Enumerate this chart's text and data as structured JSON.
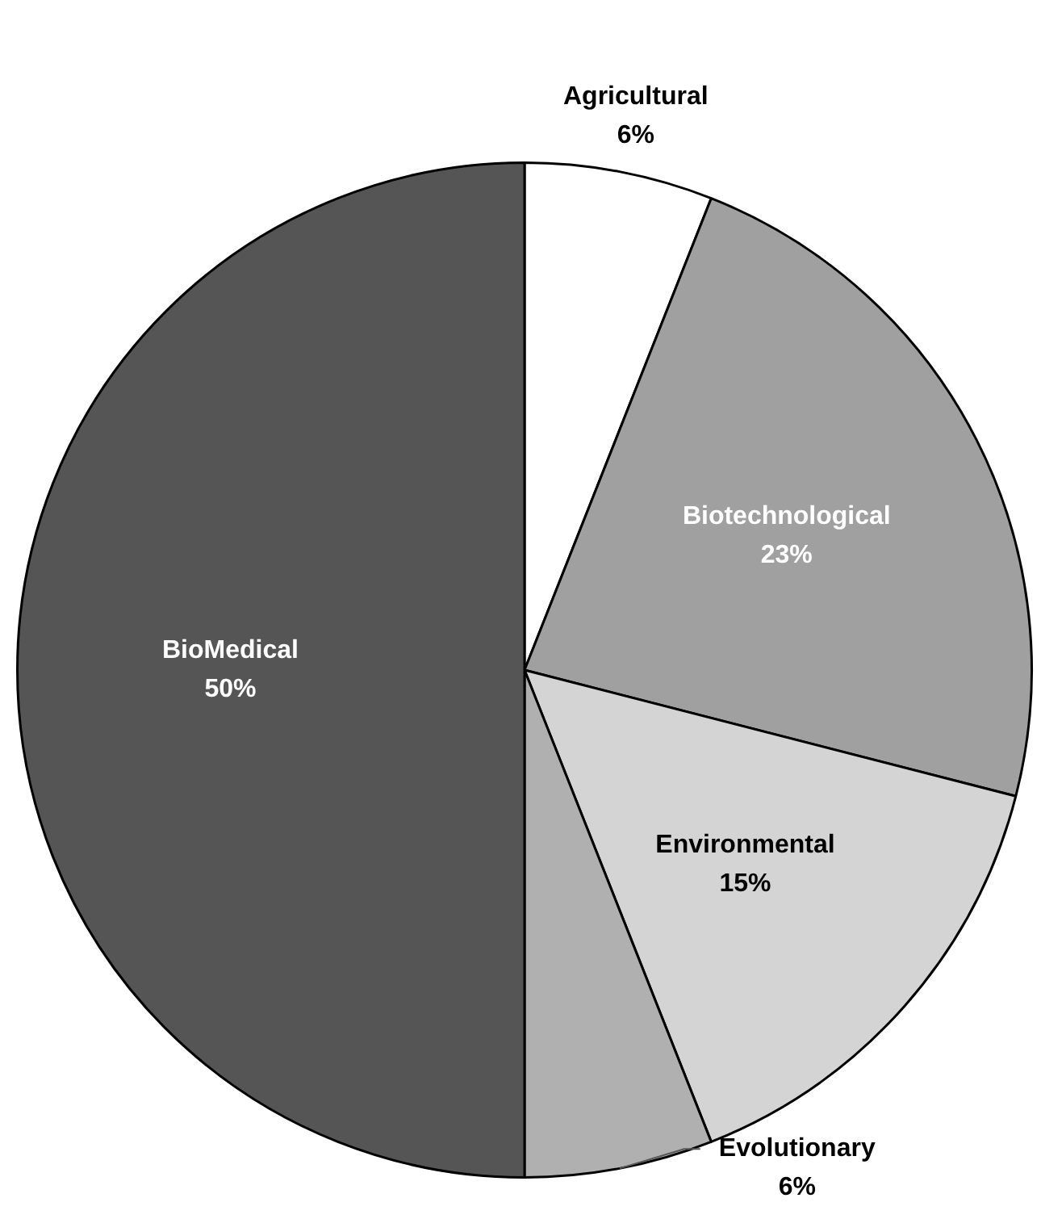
{
  "chart_data": {
    "type": "pie",
    "categories": [
      "Agricultural",
      "Biotechnological",
      "Environmental",
      "Evolutionary",
      "BioMedical"
    ],
    "values": [
      6,
      23,
      15,
      6,
      50
    ],
    "colors": [
      "#ffffff",
      "#a0a0a0",
      "#d4d4d4",
      "#b0b0b0",
      "#555555"
    ],
    "value_labels": [
      "6%",
      "23%",
      "15%",
      "6%",
      "50%"
    ]
  }
}
